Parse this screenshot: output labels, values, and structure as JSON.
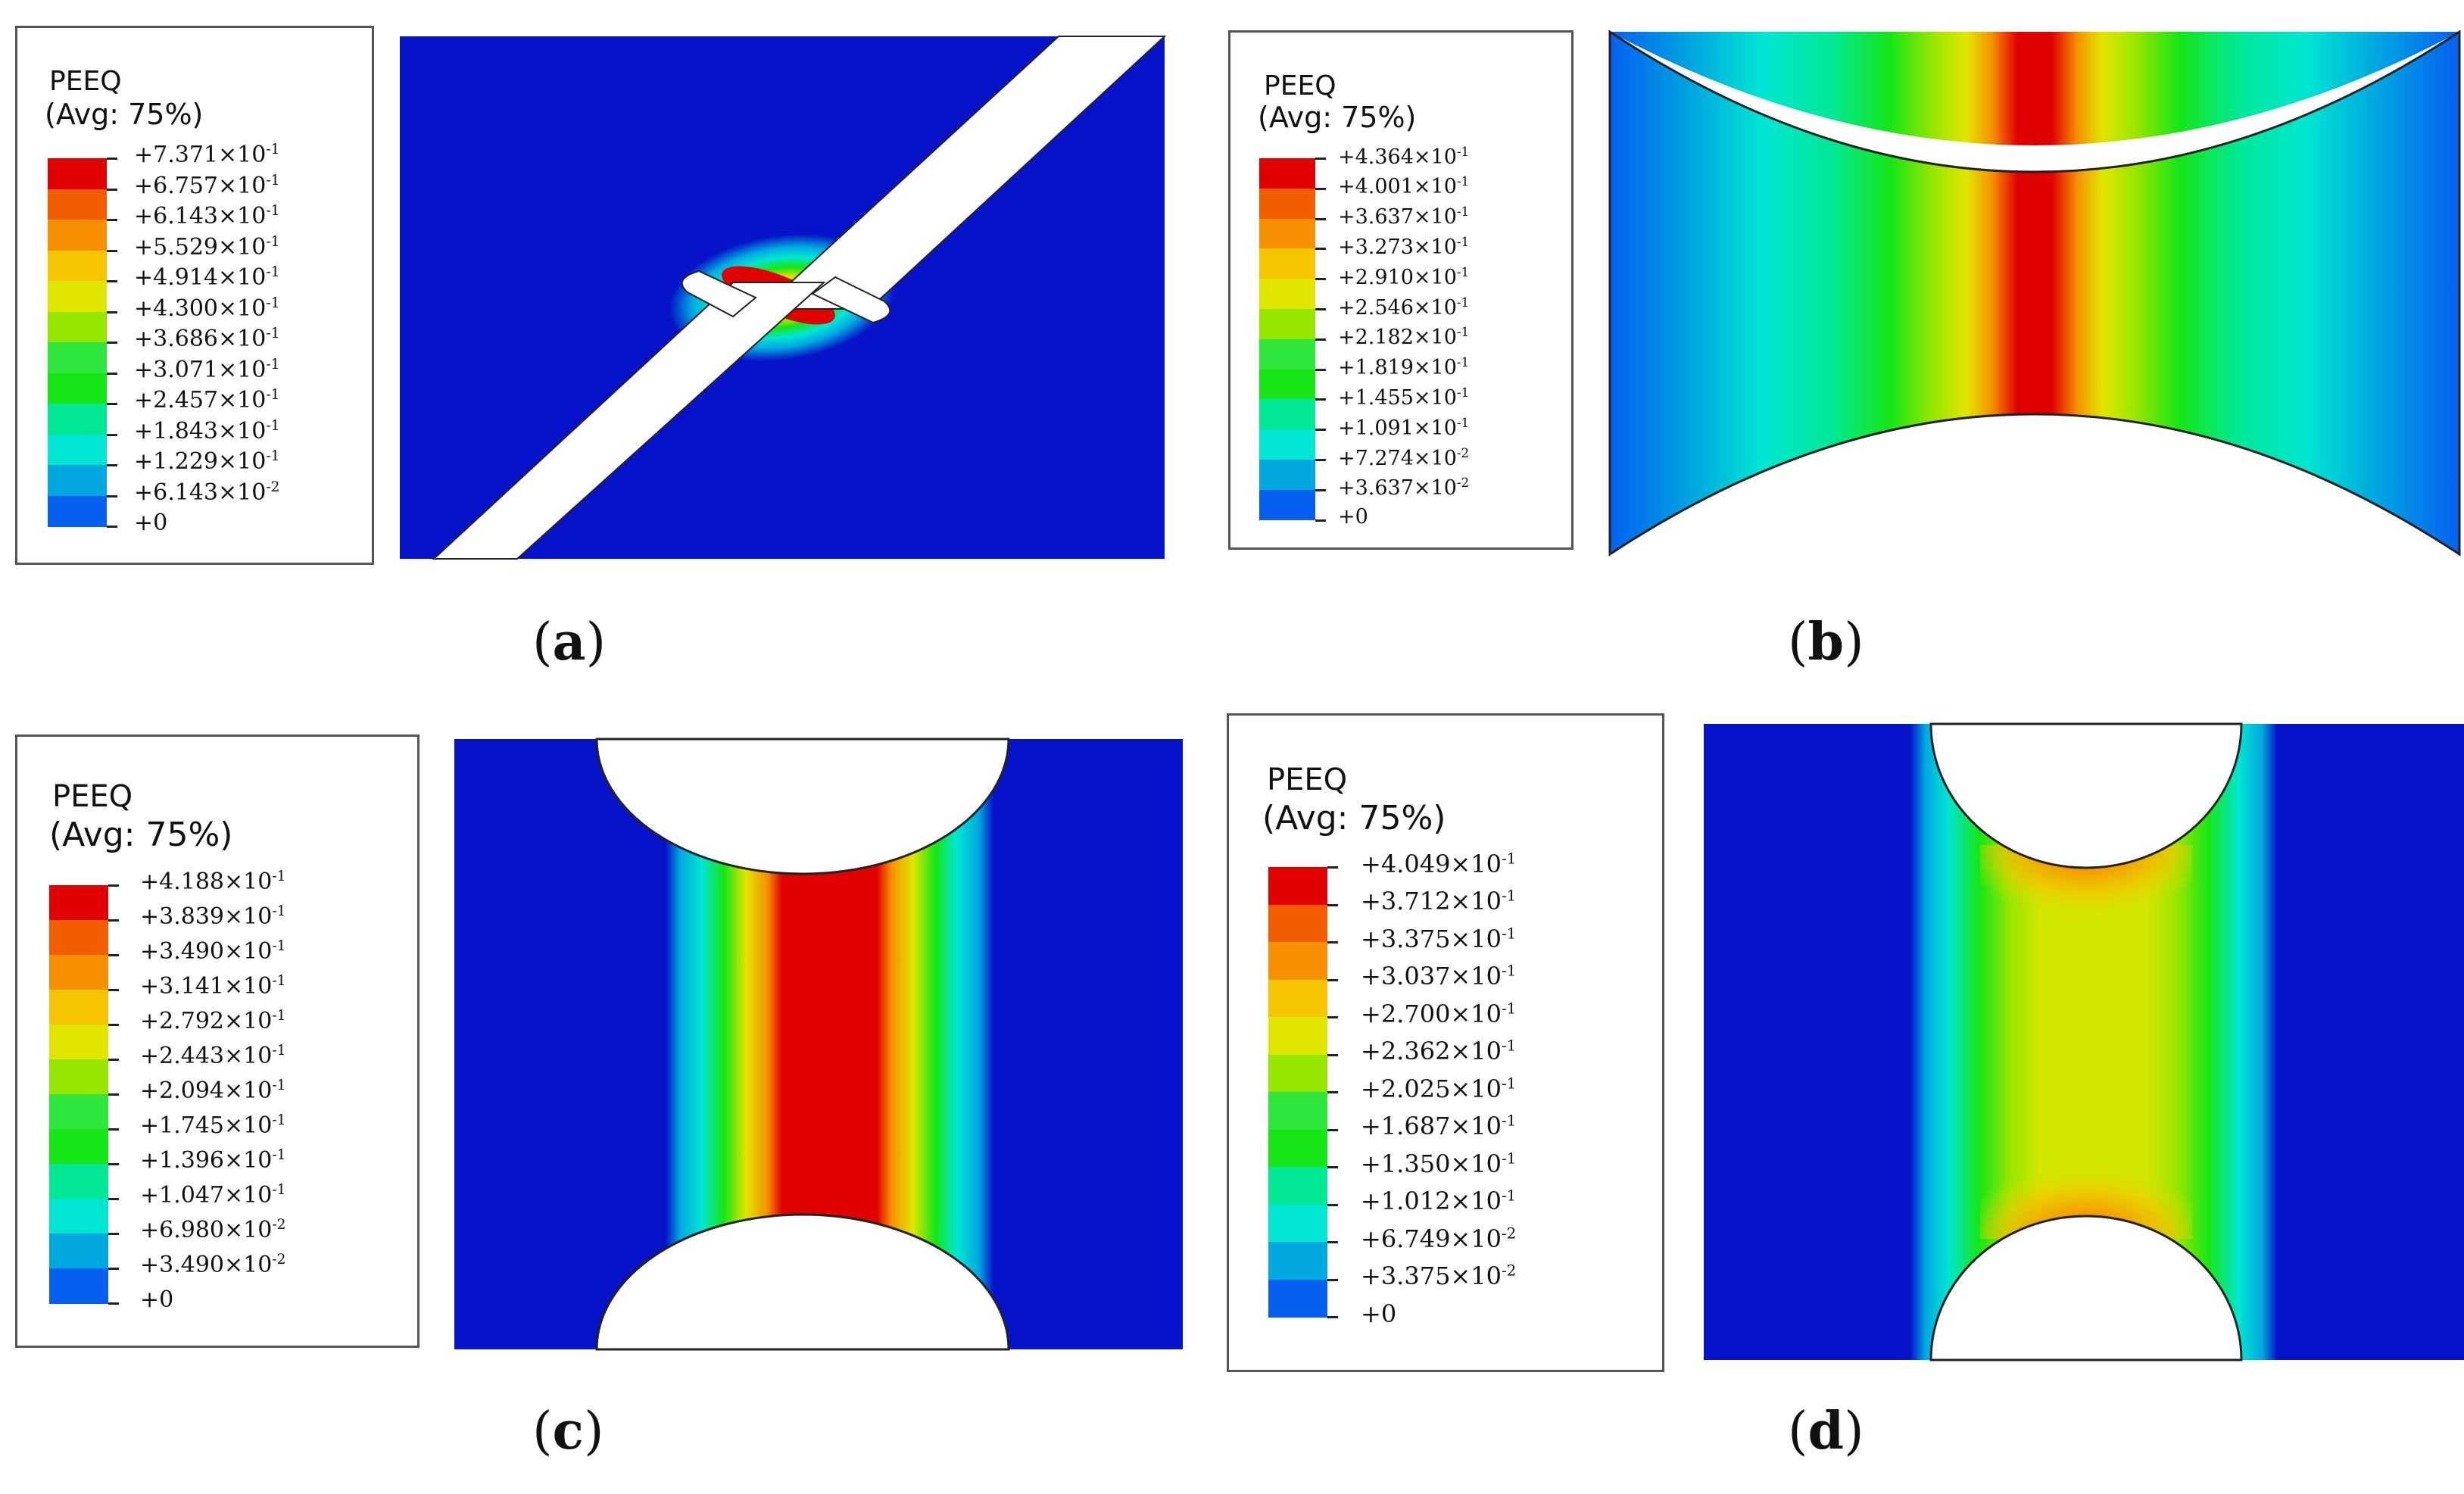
{
  "colors": {
    "scale": [
      "#0000f5",
      "#0560f0",
      "#00a8e0",
      "#00e6d2",
      "#00e896",
      "#16e616",
      "#2ee63c",
      "#97e600",
      "#e1e600",
      "#f7c400",
      "#f69000",
      "#f25d00",
      "#e00000"
    ],
    "background": "#0713c8"
  },
  "panels": [
    {
      "id": "a",
      "caption_letter": "a",
      "legend": {
        "title": "PEEQ",
        "subtitle": "(Avg: 75%)",
        "values": [
          {
            "mant": "+7.371",
            "exp": "-1"
          },
          {
            "mant": "+6.757",
            "exp": "-1"
          },
          {
            "mant": "+6.143",
            "exp": "-1"
          },
          {
            "mant": "+5.529",
            "exp": "-1"
          },
          {
            "mant": "+4.914",
            "exp": "-1"
          },
          {
            "mant": "+4.300",
            "exp": "-1"
          },
          {
            "mant": "+3.686",
            "exp": "-1"
          },
          {
            "mant": "+3.071",
            "exp": "-1"
          },
          {
            "mant": "+2.457",
            "exp": "-1"
          },
          {
            "mant": "+1.843",
            "exp": "-1"
          },
          {
            "mant": "+1.229",
            "exp": "-1"
          },
          {
            "mant": "+6.143",
            "exp": "-2"
          }
        ],
        "zero": "+0"
      }
    },
    {
      "id": "b",
      "caption_letter": "b",
      "legend": {
        "title": "PEEQ",
        "subtitle": "(Avg: 75%)",
        "values": [
          {
            "mant": "+4.364",
            "exp": "-1"
          },
          {
            "mant": "+4.001",
            "exp": "-1"
          },
          {
            "mant": "+3.637",
            "exp": "-1"
          },
          {
            "mant": "+3.273",
            "exp": "-1"
          },
          {
            "mant": "+2.910",
            "exp": "-1"
          },
          {
            "mant": "+2.546",
            "exp": "-1"
          },
          {
            "mant": "+2.182",
            "exp": "-1"
          },
          {
            "mant": "+1.819",
            "exp": "-1"
          },
          {
            "mant": "+1.455",
            "exp": "-1"
          },
          {
            "mant": "+1.091",
            "exp": "-1"
          },
          {
            "mant": "+7.274",
            "exp": "-2"
          },
          {
            "mant": "+3.637",
            "exp": "-2"
          }
        ],
        "zero": "+0"
      }
    },
    {
      "id": "c",
      "caption_letter": "c",
      "legend": {
        "title": "PEEQ",
        "subtitle": "(Avg: 75%)",
        "values": [
          {
            "mant": "+4.188",
            "exp": "-1"
          },
          {
            "mant": "+3.839",
            "exp": "-1"
          },
          {
            "mant": "+3.490",
            "exp": "-1"
          },
          {
            "mant": "+3.141",
            "exp": "-1"
          },
          {
            "mant": "+2.792",
            "exp": "-1"
          },
          {
            "mant": "+2.443",
            "exp": "-1"
          },
          {
            "mant": "+2.094",
            "exp": "-1"
          },
          {
            "mant": "+1.745",
            "exp": "-1"
          },
          {
            "mant": "+1.396",
            "exp": "-1"
          },
          {
            "mant": "+1.047",
            "exp": "-1"
          },
          {
            "mant": "+6.980",
            "exp": "-2"
          },
          {
            "mant": "+3.490",
            "exp": "-2"
          }
        ],
        "zero": "+0"
      }
    },
    {
      "id": "d",
      "caption_letter": "d",
      "legend": {
        "title": "PEEQ",
        "subtitle": "(Avg: 75%)",
        "values": [
          {
            "mant": "+4.049",
            "exp": "-1"
          },
          {
            "mant": "+3.712",
            "exp": "-1"
          },
          {
            "mant": "+3.375",
            "exp": "-1"
          },
          {
            "mant": "+3.037",
            "exp": "-1"
          },
          {
            "mant": "+2.700",
            "exp": "-1"
          },
          {
            "mant": "+2.362",
            "exp": "-1"
          },
          {
            "mant": "+2.025",
            "exp": "-1"
          },
          {
            "mant": "+1.687",
            "exp": "-1"
          },
          {
            "mant": "+1.350",
            "exp": "-1"
          },
          {
            "mant": "+1.012",
            "exp": "-1"
          },
          {
            "mant": "+6.749",
            "exp": "-2"
          },
          {
            "mant": "+3.375",
            "exp": "-2"
          }
        ],
        "zero": "+0"
      }
    }
  ],
  "multiplier": "×10"
}
